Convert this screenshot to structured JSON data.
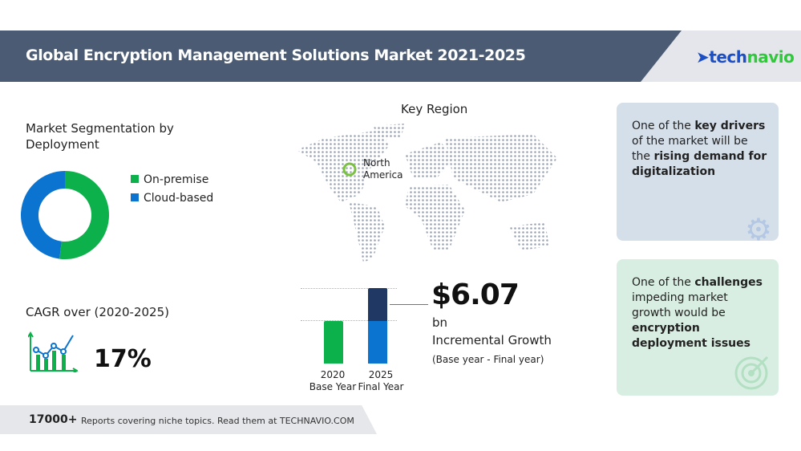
{
  "header": {
    "title": "Global Encryption Management Solutions Market 2021-2025",
    "logo": {
      "part1": "tech",
      "part2": "navio"
    }
  },
  "segmentation": {
    "title_line1": "Market Segmentation by",
    "title_line2": "Deployment"
  },
  "chart_data": [
    {
      "type": "pie",
      "donut": true,
      "categories": [
        "On-premise",
        "Cloud-based"
      ],
      "values": [
        52,
        48
      ],
      "colors": [
        "#0db14b",
        "#0a74d0"
      ],
      "legend": "right"
    },
    {
      "type": "bar",
      "categories": [
        "2020",
        "2025"
      ],
      "category_sublabels": [
        "Base Year",
        "Final Year"
      ],
      "series": [
        {
          "values": [
            1,
            1
          ],
          "colors": [
            "#0db14b",
            "#0a74d0"
          ]
        },
        {
          "values": [
            0,
            0.73
          ],
          "colors": [
            "#1f3864",
            "#1f3864"
          ]
        }
      ]
    }
  ],
  "cagr": {
    "label": "CAGR over (2020-2025)",
    "value": "17%"
  },
  "region": {
    "title": "Key Region",
    "label_line1": "North",
    "label_line2": "America"
  },
  "growth": {
    "value": "$6.07",
    "unit": "bn",
    "label": "Incremental Growth",
    "sub": "(Base year - Final year)",
    "bar1_line1": "2020",
    "bar1_line2": "Base Year",
    "bar2_line1": "2025",
    "bar2_line2": "Final Year"
  },
  "drivers": {
    "t1": "One of the ",
    "b1": "key drivers",
    "t2": " of the market will be the ",
    "b2": "rising demand for digitalization"
  },
  "challenges": {
    "t1": "One of the ",
    "b1": "challenges",
    "t2": " impeding market growth would be ",
    "b2": "encryption deployment issues"
  },
  "footer": {
    "count": "17000+",
    "text": "Reports covering niche topics. Read them at TECHNAVIO.COM"
  }
}
